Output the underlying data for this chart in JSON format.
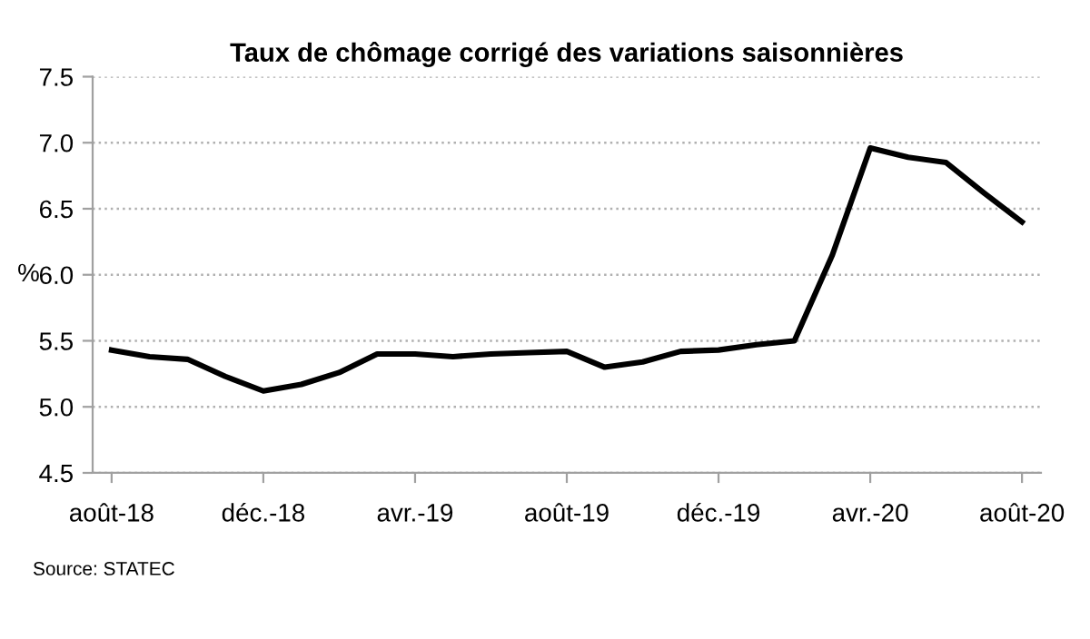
{
  "chart_data": {
    "type": "line",
    "title": "Taux de chômage corrigé des variations saisonnières",
    "ylabel": "%",
    "categories": [
      "août-18",
      null,
      null,
      null,
      "déc.-18",
      null,
      null,
      null,
      "avr.-19",
      null,
      null,
      null,
      "août-19",
      null,
      null,
      null,
      "déc.-19",
      null,
      null,
      null,
      "avr.-20",
      null,
      null,
      null,
      "août-20"
    ],
    "series": [
      {
        "color": "#000000",
        "values": [
          5.43,
          5.38,
          5.36,
          5.23,
          5.12,
          5.17,
          5.26,
          5.4,
          5.4,
          5.38,
          5.4,
          5.41,
          5.42,
          5.3,
          5.34,
          5.42,
          5.43,
          5.47,
          5.5,
          6.15,
          6.96,
          6.89,
          6.85,
          6.62,
          6.4
        ]
      }
    ],
    "ylim": [
      4.5,
      7.5
    ],
    "yticks": [
      {
        "value": 4.5,
        "label": "4.5"
      },
      {
        "value": 5,
        "label": "5.0"
      },
      {
        "value": 5.5,
        "label": "5.5"
      },
      {
        "value": 6,
        "label": "6.0"
      },
      {
        "value": 6.5,
        "label": "6.5"
      },
      {
        "value": 7,
        "label": "7.0"
      },
      {
        "value": 7.5,
        "label": "7.5"
      }
    ],
    "grid": "y",
    "legend": false,
    "marker": "none",
    "line_style": "solid",
    "annotations": [
      "Source: STATEC"
    ]
  }
}
